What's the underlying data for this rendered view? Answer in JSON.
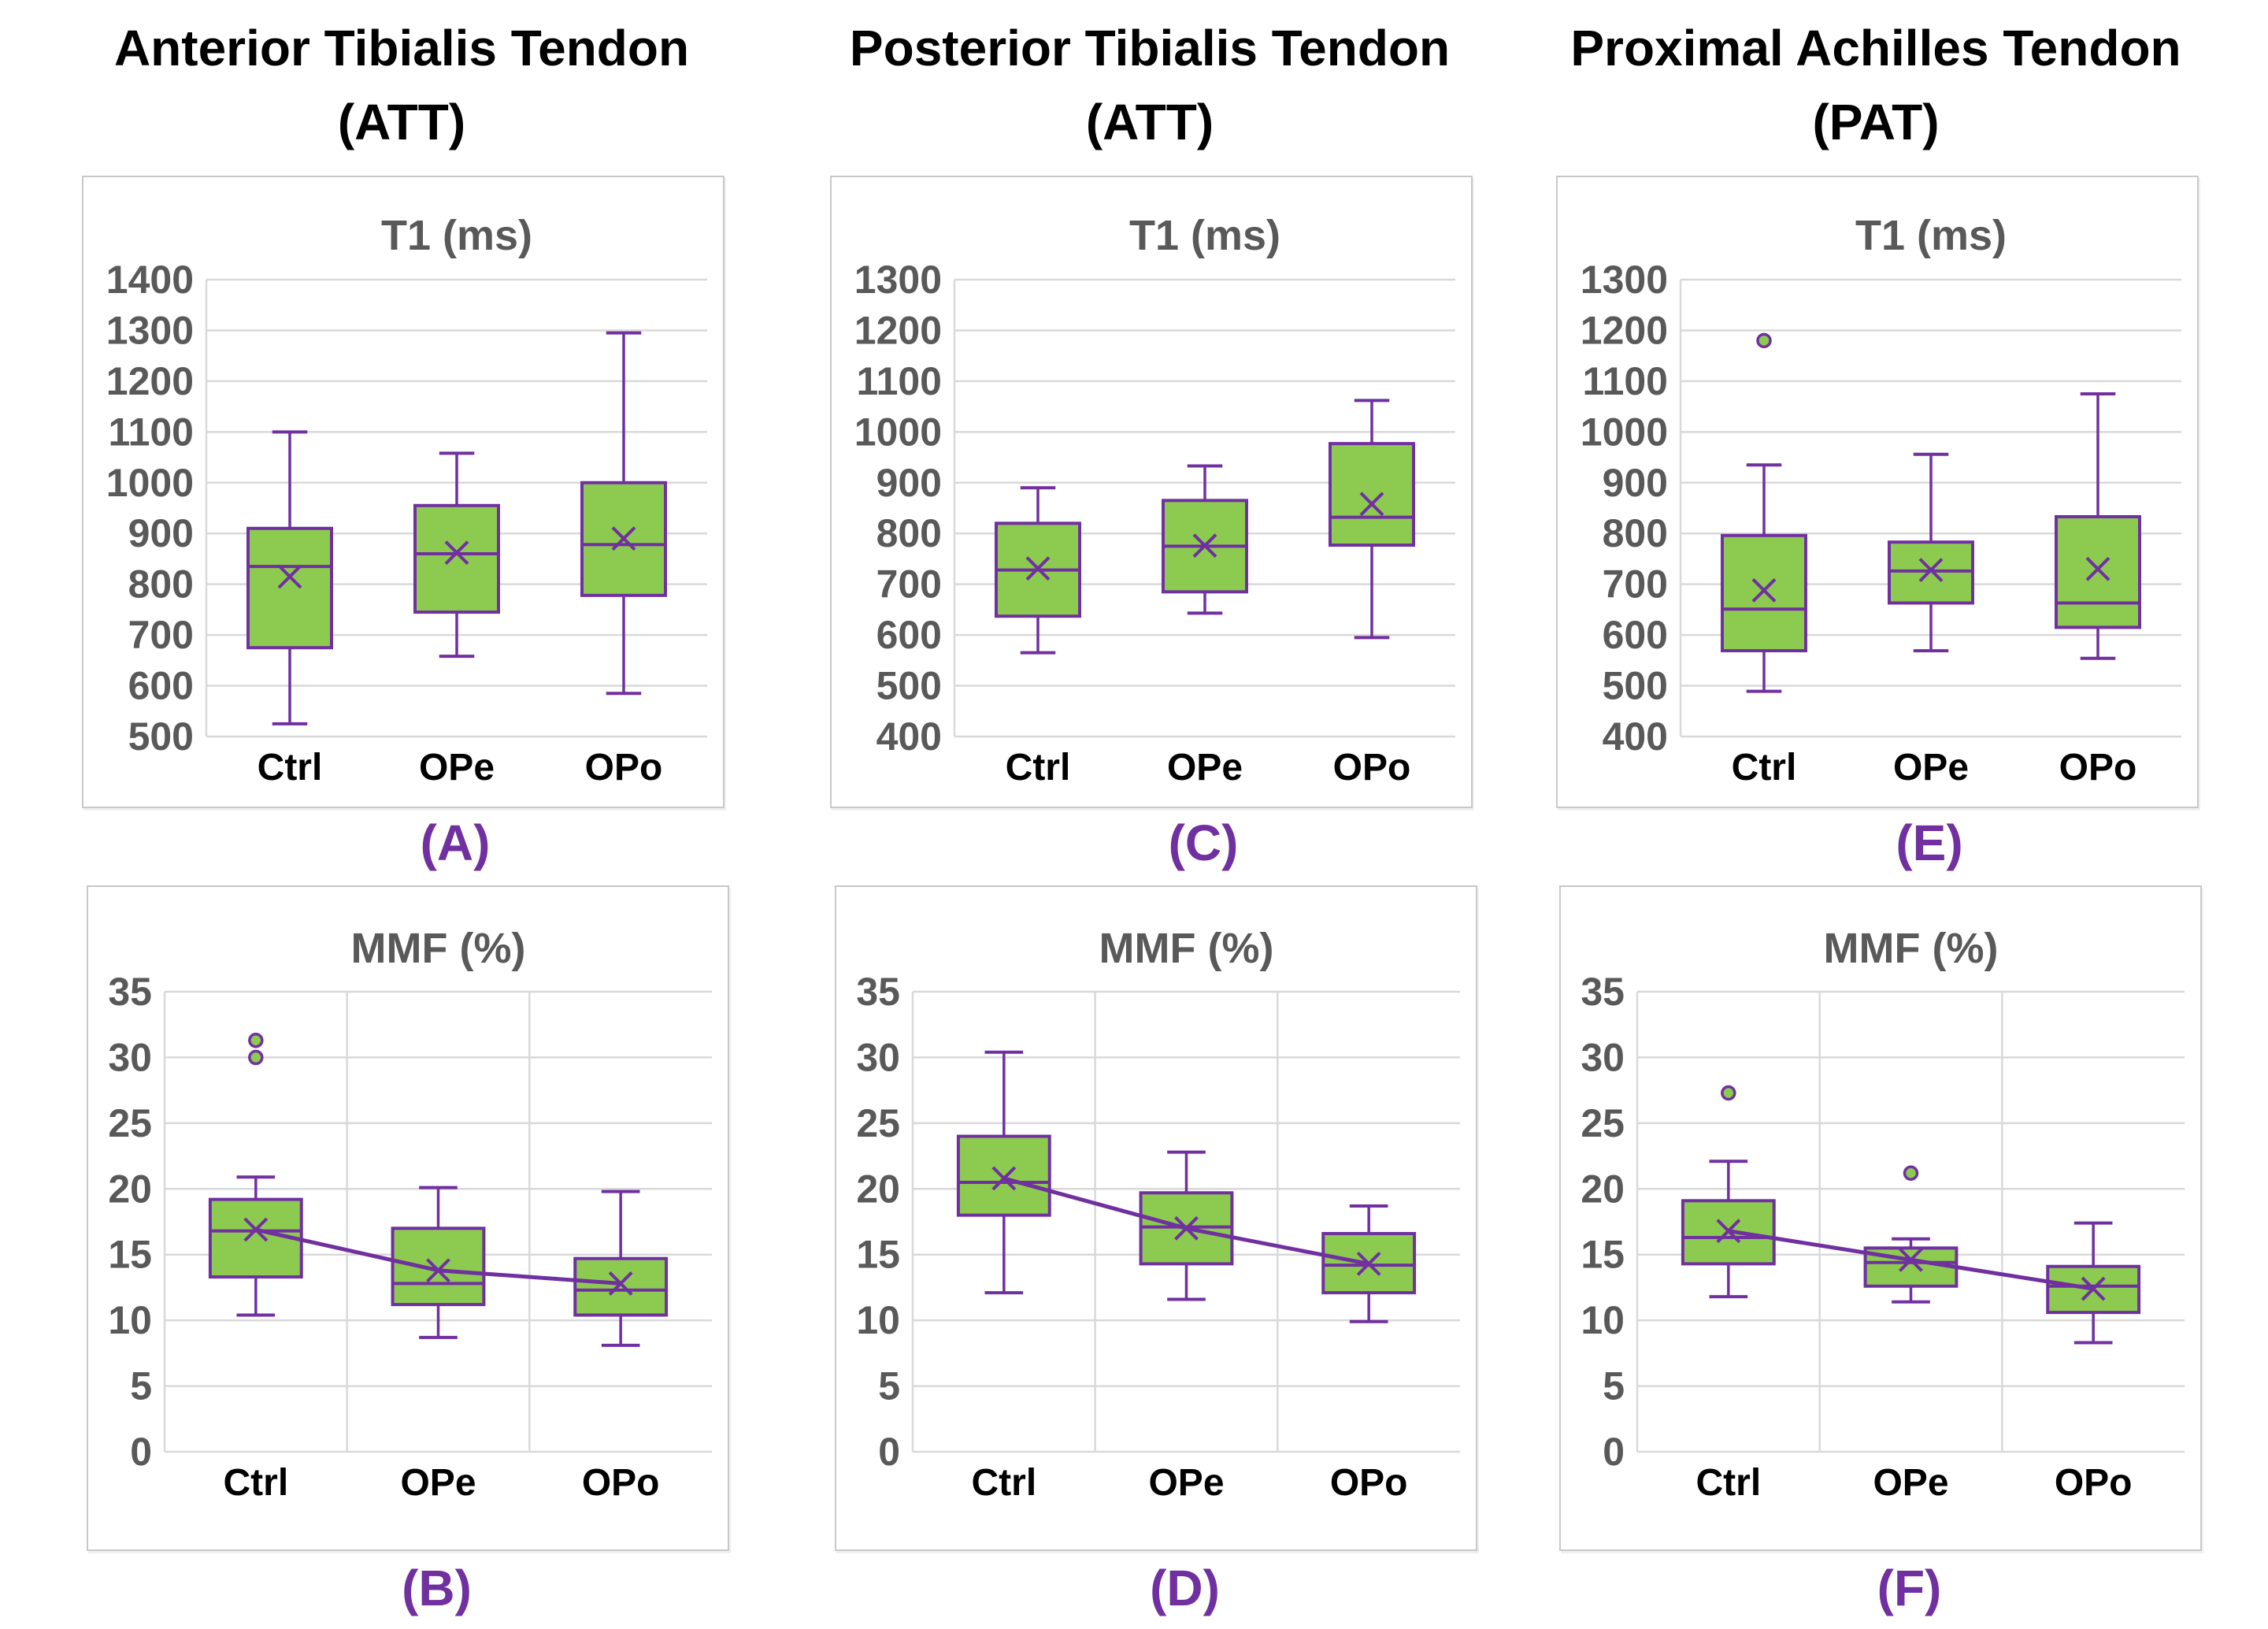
{
  "figure": {
    "background": "#ffffff",
    "description": "Six box-and-whisker plots comparing T1 (ms) and MMF (%) across Ctrl, OPe and OPo groups for three tendons"
  },
  "colors": {
    "box_fill": "#8CCB4F",
    "box_stroke": "#7030A0",
    "mean_line": "#7030A0",
    "grid": "#D9D9D9",
    "axis_text": "#595959",
    "title_text": "#595959",
    "category_text": "#000000",
    "panel_letter": "#7030A0",
    "panel_border": "#C9C9C9"
  },
  "columns": [
    {
      "title": "Anterior Tibialis Tendon",
      "subtitle": "(ATT)"
    },
    {
      "title": "Posterior Tibialis Tendon",
      "subtitle": "(ATT)"
    },
    {
      "title": "Proximal Achilles Tendon",
      "subtitle": "(PAT)"
    }
  ],
  "categories": [
    "Ctrl",
    "OPe",
    "OPo"
  ],
  "chart_data": [
    {
      "id": "A",
      "panel_label": "(A)",
      "type": "box",
      "title": "T1 (ms)",
      "tendon": "Anterior Tibialis Tendon (ATT)",
      "ylim": [
        500,
        1400
      ],
      "ytick_step": 100,
      "grid": "horizontal",
      "vertical_gridlines": false,
      "mean_line": false,
      "categories": [
        "Ctrl",
        "OPe",
        "OPo"
      ],
      "boxes": [
        {
          "category": "Ctrl",
          "whisker_low": 525,
          "q1": 675,
          "median": 835,
          "q3": 910,
          "whisker_high": 1100,
          "mean": 815,
          "outliers": []
        },
        {
          "category": "OPe",
          "whisker_low": 658,
          "q1": 745,
          "median": 860,
          "q3": 955,
          "whisker_high": 1058,
          "mean": 862,
          "outliers": []
        },
        {
          "category": "OPo",
          "whisker_low": 585,
          "q1": 778,
          "median": 878,
          "q3": 1000,
          "whisker_high": 1295,
          "mean": 890,
          "outliers": []
        }
      ]
    },
    {
      "id": "C",
      "panel_label": "(C)",
      "type": "box",
      "title": "T1 (ms)",
      "tendon": "Posterior Tibialis Tendon (ATT)",
      "ylim": [
        400,
        1300
      ],
      "ytick_step": 100,
      "grid": "horizontal",
      "vertical_gridlines": false,
      "mean_line": false,
      "categories": [
        "Ctrl",
        "OPe",
        "OPo"
      ],
      "boxes": [
        {
          "category": "Ctrl",
          "whisker_low": 565,
          "q1": 637,
          "median": 728,
          "q3": 820,
          "whisker_high": 890,
          "mean": 731,
          "outliers": []
        },
        {
          "category": "OPe",
          "whisker_low": 643,
          "q1": 685,
          "median": 775,
          "q3": 865,
          "whisker_high": 933,
          "mean": 776,
          "outliers": []
        },
        {
          "category": "OPo",
          "whisker_low": 595,
          "q1": 777,
          "median": 832,
          "q3": 977,
          "whisker_high": 1062,
          "mean": 858,
          "outliers": []
        }
      ]
    },
    {
      "id": "E",
      "panel_label": "(E)",
      "type": "box",
      "title": "T1 (ms)",
      "tendon": "Proximal Achilles Tendon (PAT)",
      "ylim": [
        400,
        1300
      ],
      "ytick_step": 100,
      "grid": "horizontal",
      "vertical_gridlines": false,
      "mean_line": false,
      "categories": [
        "Ctrl",
        "OPe",
        "OPo"
      ],
      "boxes": [
        {
          "category": "Ctrl",
          "whisker_low": 489,
          "q1": 569,
          "median": 651,
          "q3": 796,
          "whisker_high": 935,
          "mean": 688,
          "outliers": [
            1180
          ]
        },
        {
          "category": "OPe",
          "whisker_low": 569,
          "q1": 663,
          "median": 726,
          "q3": 783,
          "whisker_high": 956,
          "mean": 728,
          "outliers": []
        },
        {
          "category": "OPo",
          "whisker_low": 554,
          "q1": 615,
          "median": 663,
          "q3": 833,
          "whisker_high": 1075,
          "mean": 730,
          "outliers": []
        }
      ]
    },
    {
      "id": "B",
      "panel_label": "(B)",
      "type": "box",
      "title": "MMF (%)",
      "tendon": "Anterior Tibialis Tendon (ATT)",
      "ylim": [
        0,
        35
      ],
      "ytick_step": 5,
      "grid": "both",
      "vertical_gridlines": true,
      "mean_line": true,
      "categories": [
        "Ctrl",
        "OPe",
        "OPo"
      ],
      "boxes": [
        {
          "category": "Ctrl",
          "whisker_low": 10.4,
          "q1": 13.3,
          "median": 16.8,
          "q3": 19.2,
          "whisker_high": 20.9,
          "mean": 16.9,
          "outliers": [
            30.0,
            31.3
          ]
        },
        {
          "category": "OPe",
          "whisker_low": 8.7,
          "q1": 11.2,
          "median": 12.8,
          "q3": 17.0,
          "whisker_high": 20.1,
          "mean": 13.8,
          "outliers": []
        },
        {
          "category": "OPo",
          "whisker_low": 8.1,
          "q1": 10.4,
          "median": 12.3,
          "q3": 14.7,
          "whisker_high": 19.8,
          "mean": 12.8,
          "outliers": []
        }
      ]
    },
    {
      "id": "D",
      "panel_label": "(D)",
      "type": "box",
      "title": "MMF (%)",
      "tendon": "Posterior Tibialis Tendon (ATT)",
      "ylim": [
        0,
        35
      ],
      "ytick_step": 5,
      "grid": "both",
      "vertical_gridlines": true,
      "mean_line": true,
      "categories": [
        "Ctrl",
        "OPe",
        "OPo"
      ],
      "boxes": [
        {
          "category": "Ctrl",
          "whisker_low": 12.1,
          "q1": 18.0,
          "median": 20.5,
          "q3": 24.0,
          "whisker_high": 30.4,
          "mean": 20.8,
          "outliers": []
        },
        {
          "category": "OPe",
          "whisker_low": 11.6,
          "q1": 14.3,
          "median": 17.1,
          "q3": 19.7,
          "whisker_high": 22.8,
          "mean": 17.0,
          "outliers": []
        },
        {
          "category": "OPo",
          "whisker_low": 9.9,
          "q1": 12.1,
          "median": 14.2,
          "q3": 16.6,
          "whisker_high": 18.7,
          "mean": 14.3,
          "outliers": []
        }
      ]
    },
    {
      "id": "F",
      "panel_label": "(F)",
      "type": "box",
      "title": "MMF (%)",
      "tendon": "Proximal Achilles Tendon (PAT)",
      "ylim": [
        0,
        35
      ],
      "ytick_step": 5,
      "grid": "both",
      "vertical_gridlines": true,
      "mean_line": true,
      "categories": [
        "Ctrl",
        "OPe",
        "OPo"
      ],
      "boxes": [
        {
          "category": "Ctrl",
          "whisker_low": 11.8,
          "q1": 14.3,
          "median": 16.3,
          "q3": 19.1,
          "whisker_high": 22.1,
          "mean": 16.8,
          "outliers": [
            27.3
          ]
        },
        {
          "category": "OPe",
          "whisker_low": 11.4,
          "q1": 12.6,
          "median": 14.4,
          "q3": 15.5,
          "whisker_high": 16.2,
          "mean": 14.6,
          "outliers": [
            21.2
          ]
        },
        {
          "category": "OPo",
          "whisker_low": 8.3,
          "q1": 10.6,
          "median": 12.6,
          "q3": 14.1,
          "whisker_high": 17.4,
          "mean": 12.4,
          "outliers": []
        }
      ]
    }
  ]
}
